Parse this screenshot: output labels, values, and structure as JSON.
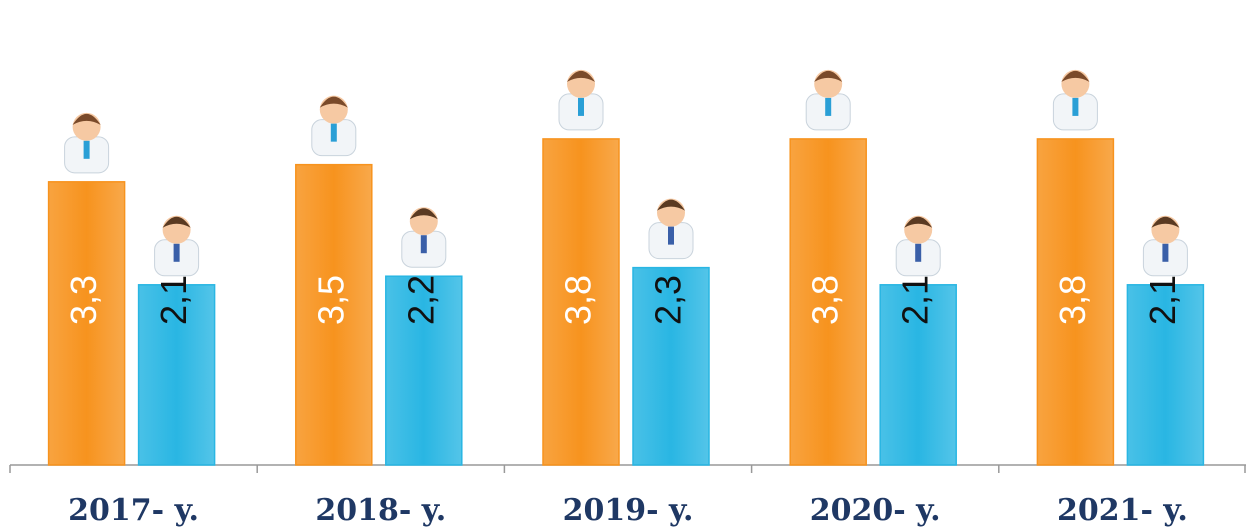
{
  "chart_data": {
    "type": "bar",
    "categories": [
      "2017- y.",
      "2018- y.",
      "2019- y.",
      "2020- y.",
      "2021- y."
    ],
    "series": [
      {
        "color": "#f7931e",
        "values": [
          3.3,
          3.5,
          3.8,
          3.8,
          3.8
        ],
        "value_labels": [
          "3,3",
          "3,5",
          "3,8",
          "3,8",
          "3,8"
        ]
      },
      {
        "color": "#29b6e3",
        "values": [
          2.1,
          2.2,
          2.3,
          2.1,
          2.1
        ],
        "value_labels": [
          "2,1",
          "2,2",
          "2,3",
          "2,1",
          "2,1"
        ]
      }
    ]
  }
}
